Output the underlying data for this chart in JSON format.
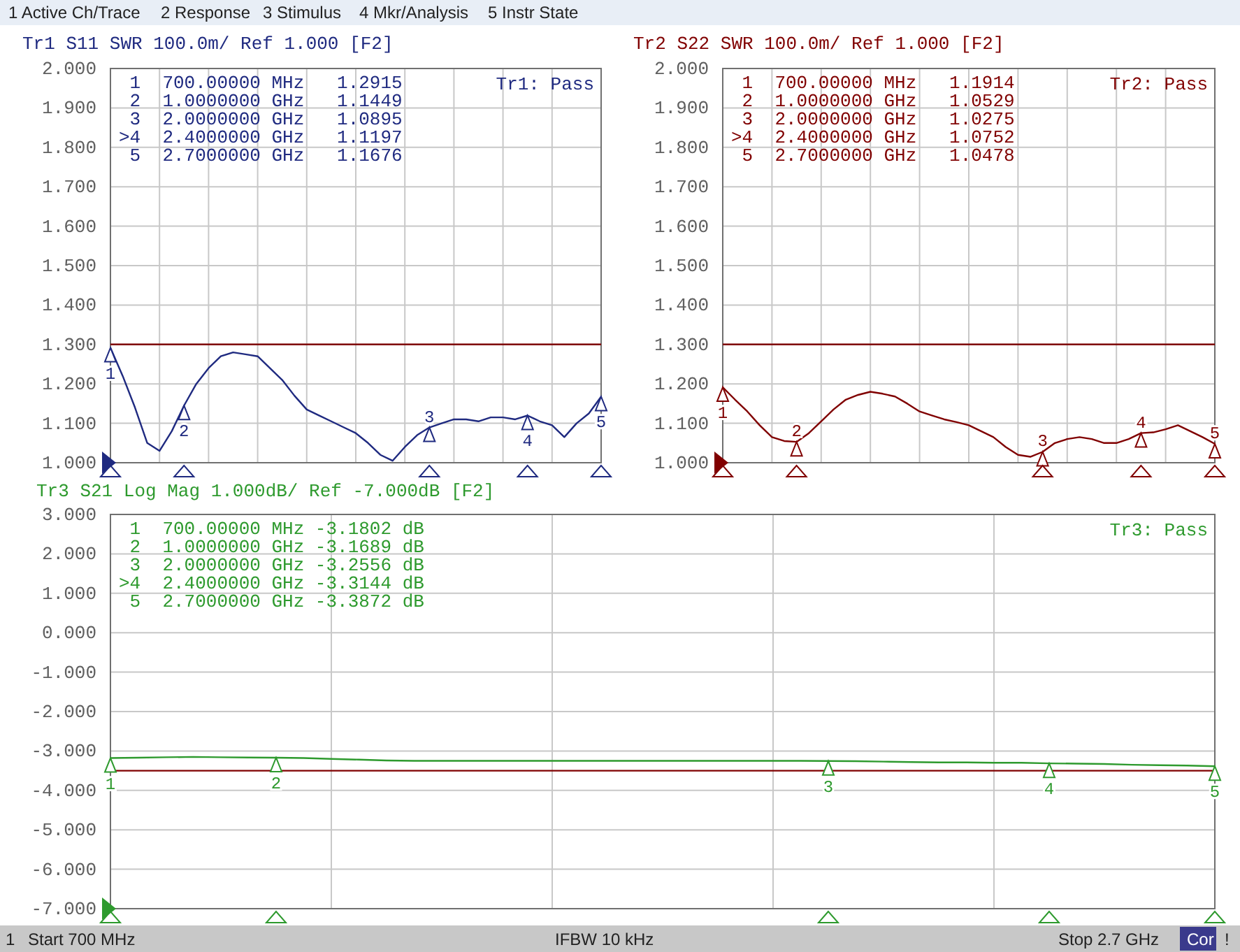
{
  "chart_data": [
    {
      "type": "line",
      "title": "Tr1 S11 SWR 100.0m/ Ref 1.000 [F2]",
      "categories": [
        null,
        null,
        null,
        null,
        null,
        null,
        null,
        null,
        null,
        null,
        null,
        null,
        null,
        null,
        null,
        null,
        null,
        null,
        null,
        null,
        null,
        null,
        null,
        null,
        null,
        null,
        null,
        null,
        null,
        null,
        null,
        null,
        null,
        null,
        null,
        null,
        null,
        null,
        null,
        null,
        null
      ],
      "series": [
        {
          "color": "#1f2a80",
          "values": [
            1.2915,
            1.22,
            1.14,
            1.05,
            1.03,
            1.08,
            1.1449,
            1.2,
            1.24,
            1.27,
            1.28,
            1.275,
            1.27,
            1.24,
            1.21,
            1.17,
            1.135,
            1.12,
            1.105,
            1.09,
            1.075,
            1.05,
            1.02,
            1.005,
            1.04,
            1.07,
            1.0895,
            1.1,
            1.11,
            1.11,
            1.105,
            1.115,
            1.115,
            1.11,
            1.1197,
            1.105,
            1.095,
            1.065,
            1.1,
            1.125,
            1.1676
          ]
        }
      ],
      "ylim": [
        1,
        2
      ],
      "yticks": [
        {
          "value": 1,
          "label": "1.000"
        },
        {
          "value": 1.1,
          "label": "1.100"
        },
        {
          "value": 1.2,
          "label": "1.200"
        },
        {
          "value": 1.3,
          "label": "1.300"
        },
        {
          "value": 1.4,
          "label": "1.400"
        },
        {
          "value": 1.5,
          "label": "1.500"
        },
        {
          "value": 1.6,
          "label": "1.600"
        },
        {
          "value": 1.7,
          "label": "1.700"
        },
        {
          "value": 1.8,
          "label": "1.800"
        },
        {
          "value": 1.9,
          "label": "1.900"
        },
        {
          "value": 2,
          "label": "2.000"
        }
      ],
      "tick_labels": "y",
      "grid": true,
      "ref_lines": [
        {
          "axis": "y",
          "value": 1.3,
          "color": "#800000"
        }
      ],
      "annotations": [
        " 1  700.00000 MHz   1.2915",
        " 2  1.0000000 GHz   1.1449",
        " 3  2.0000000 GHz   1.0895",
        ">4  2.4000000 GHz   1.1197",
        " 5  2.7000000 GHz   1.1676",
        "Tr1: Pass",
        {
          "text": "1",
          "y": 1.2915
        },
        {
          "text": "2",
          "y": 1.1449
        },
        {
          "text": "3",
          "y": 1.0895
        },
        {
          "text": "4",
          "y": 1.1197
        },
        {
          "text": "5",
          "y": 1.1676
        }
      ]
    },
    {
      "type": "line",
      "title": "Tr2 S22 SWR 100.0m/ Ref 1.000 [F2]",
      "categories": [
        null,
        null,
        null,
        null,
        null,
        null,
        null,
        null,
        null,
        null,
        null,
        null,
        null,
        null,
        null,
        null,
        null,
        null,
        null,
        null,
        null,
        null,
        null,
        null,
        null,
        null,
        null,
        null,
        null,
        null,
        null,
        null,
        null,
        null,
        null,
        null,
        null,
        null,
        null,
        null,
        null
      ],
      "series": [
        {
          "color": "#800000",
          "values": [
            1.1914,
            1.16,
            1.13,
            1.095,
            1.065,
            1.055,
            1.0529,
            1.075,
            1.105,
            1.135,
            1.16,
            1.172,
            1.18,
            1.175,
            1.168,
            1.15,
            1.13,
            1.12,
            1.11,
            1.103,
            1.095,
            1.08,
            1.065,
            1.04,
            1.02,
            1.015,
            1.0275,
            1.05,
            1.06,
            1.065,
            1.06,
            1.05,
            1.05,
            1.06,
            1.0752,
            1.077,
            1.085,
            1.095,
            1.08,
            1.065,
            1.0478
          ]
        }
      ],
      "ylim": [
        1,
        2
      ],
      "yticks": [
        {
          "value": 1,
          "label": "1.000"
        },
        {
          "value": 1.1,
          "label": "1.100"
        },
        {
          "value": 1.2,
          "label": "1.200"
        },
        {
          "value": 1.3,
          "label": "1.300"
        },
        {
          "value": 1.4,
          "label": "1.400"
        },
        {
          "value": 1.5,
          "label": "1.500"
        },
        {
          "value": 1.6,
          "label": "1.600"
        },
        {
          "value": 1.7,
          "label": "1.700"
        },
        {
          "value": 1.8,
          "label": "1.800"
        },
        {
          "value": 1.9,
          "label": "1.900"
        },
        {
          "value": 2,
          "label": "2.000"
        }
      ],
      "tick_labels": "y",
      "grid": true,
      "ref_lines": [
        {
          "axis": "y",
          "value": 1.3,
          "color": "#800000"
        }
      ],
      "annotations": [
        " 1  700.00000 MHz   1.1914",
        " 2  1.0000000 GHz   1.0529",
        " 3  2.0000000 GHz   1.0275",
        ">4  2.4000000 GHz   1.0752",
        " 5  2.7000000 GHz   1.0478",
        "Tr2: Pass",
        {
          "text": "1",
          "y": 1.1914
        },
        {
          "text": "2",
          "y": 1.0529
        },
        {
          "text": "3",
          "y": 1.0275
        },
        {
          "text": "4",
          "y": 1.0752
        },
        {
          "text": "5",
          "y": 1.0478
        }
      ]
    },
    {
      "type": "line",
      "title": "Tr3 S21 Log Mag 1.000dB/ Ref -7.000dB [F2]",
      "categories": [
        null,
        null,
        null,
        null,
        null,
        null,
        null,
        null,
        null,
        null,
        null,
        null,
        null,
        null,
        null,
        null,
        null,
        null,
        null,
        null,
        null,
        null,
        null,
        null,
        null,
        null,
        null,
        null,
        null,
        null,
        null,
        null,
        null,
        null,
        null,
        null,
        null,
        null,
        null,
        null,
        null
      ],
      "series": [
        {
          "color": "#2e9a2e",
          "values": [
            -3.1802,
            -3.17,
            -3.16,
            -3.15,
            -3.16,
            -3.165,
            -3.1689,
            -3.18,
            -3.2,
            -3.22,
            -3.24,
            -3.25,
            -3.25,
            -3.25,
            -3.25,
            -3.25,
            -3.25,
            -3.25,
            -3.25,
            -3.25,
            -3.25,
            -3.25,
            -3.25,
            -3.25,
            -3.25,
            -3.25,
            -3.2556,
            -3.26,
            -3.27,
            -3.28,
            -3.29,
            -3.29,
            -3.3,
            -3.3,
            -3.3144,
            -3.32,
            -3.33,
            -3.35,
            -3.36,
            -3.37,
            -3.3872
          ]
        }
      ],
      "ylim": [
        -7,
        3
      ],
      "yticks": [
        {
          "value": -7,
          "label": "-7.000"
        },
        {
          "value": -6,
          "label": "-6.000"
        },
        {
          "value": -5,
          "label": "-5.000"
        },
        {
          "value": -4,
          "label": "-4.000"
        },
        {
          "value": -3,
          "label": "-3.000"
        },
        {
          "value": -2,
          "label": "-2.000"
        },
        {
          "value": -1,
          "label": "-1.000"
        },
        {
          "value": 0,
          "label": "0.000"
        },
        {
          "value": 1,
          "label": "1.000"
        },
        {
          "value": 2,
          "label": "2.000"
        },
        {
          "value": 3,
          "label": "3.000"
        }
      ],
      "tick_labels": "y",
      "grid": true,
      "ref_lines": [
        {
          "axis": "y",
          "value": -3.5,
          "color": "#800000"
        }
      ],
      "annotations": [
        " 1  700.00000 MHz -3.1802 dB",
        " 2  1.0000000 GHz -3.1689 dB",
        " 3  2.0000000 GHz -3.2556 dB",
        ">4  2.4000000 GHz -3.3144 dB",
        " 5  2.7000000 GHz -3.3872 dB",
        "Tr3: Pass",
        {
          "text": "1",
          "y": -3.1802
        },
        {
          "text": "2",
          "y": -3.1689
        },
        {
          "text": "3",
          "y": -3.2556
        },
        {
          "text": "4",
          "y": -3.3144
        },
        {
          "text": "5",
          "y": -3.3872
        }
      ]
    },
    {
      "type": "other",
      "annotations": [
        "1 Active Ch/Trace",
        "2 Response",
        "3 Stimulus",
        "4 Mkr/Analysis",
        "5 Instr State",
        "1",
        "Start 700 MHz",
        "IFBW 10 kHz",
        "Stop 2.7 GHz",
        "Cor",
        "!"
      ]
    }
  ]
}
